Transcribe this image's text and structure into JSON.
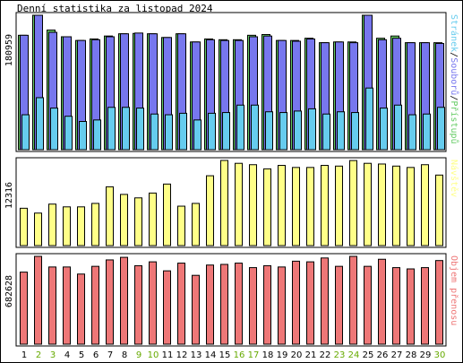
{
  "chart_data": {
    "type": "bar",
    "title": "Denní statistika za listopad 2024",
    "categories": [
      "1",
      "2",
      "3",
      "4",
      "5",
      "6",
      "7",
      "8",
      "9",
      "10",
      "11",
      "12",
      "13",
      "14",
      "15",
      "16",
      "17",
      "18",
      "19",
      "20",
      "21",
      "22",
      "23",
      "24",
      "25",
      "26",
      "27",
      "28",
      "29",
      "30"
    ],
    "weekend_days": [
      "2",
      "3",
      "9",
      "10",
      "16",
      "17",
      "23",
      "24",
      "30"
    ],
    "colors": {
      "hits": "#66cc66",
      "files": "#7777ee",
      "pages": "#66ccee",
      "visits": "#ffff88",
      "kbytes": "#ee7777",
      "weekend_label": "#66aa00",
      "axis_label_text": "#000000"
    },
    "panels": [
      {
        "id": "hits-files-pages",
        "max_label": "180959",
        "ymax": 180959,
        "legend_parts": [
          {
            "text": "Stránek",
            "color": "#66ccee"
          },
          {
            "text": "/",
            "color": "#000000"
          },
          {
            "text": "Souborů",
            "color": "#7777ee"
          },
          {
            "text": "/",
            "color": "#000000"
          },
          {
            "text": "Přístupů",
            "color": "#66cc66"
          }
        ],
        "series": [
          {
            "name": "Přístupů",
            "values": [
              154000,
              180959,
              161000,
              152000,
              147000,
              149000,
              153000,
              156000,
              156500,
              156000,
              151000,
              156000,
              145000,
              149000,
              148000,
              148000,
              154000,
              155000,
              147000,
              147000,
              150000,
              144000,
              145000,
              145000,
              180959,
              150000,
              153000,
              144000,
              144000,
              144000
            ]
          },
          {
            "name": "Souborů",
            "values": [
              154000,
              180959,
              158000,
              152000,
              147000,
              148000,
              152000,
              156000,
              157000,
              156000,
              151000,
              156000,
              145000,
              148000,
              147000,
              147000,
              152000,
              153000,
              147000,
              146000,
              149000,
              144000,
              145000,
              144000,
              180959,
              148000,
              150000,
              144000,
              144000,
              143000
            ]
          },
          {
            "name": "Stránek",
            "values": [
              47000,
              70000,
              56000,
              45000,
              38000,
              40000,
              57000,
              57000,
              56000,
              48000,
              47000,
              49000,
              40000,
              49000,
              50000,
              60000,
              60000,
              51000,
              50000,
              52000,
              55000,
              48000,
              51000,
              50000,
              83000,
              56000,
              60000,
              47000,
              48000,
              57000
            ]
          }
        ]
      },
      {
        "id": "visits",
        "max_label": "12316",
        "ymax": 12316,
        "legend_parts": [
          {
            "text": "Návštěv",
            "color": "#ffff88"
          }
        ],
        "series": [
          {
            "name": "Návštěv",
            "values": [
              5400,
              4700,
              6000,
              5600,
              5600,
              6100,
              8500,
              7400,
              6900,
              7600,
              8900,
              5700,
              6100,
              10100,
              12316,
              11900,
              11700,
              11100,
              11600,
              11300,
              11300,
              11600,
              11500,
              12300,
              11900,
              11800,
              11500,
              11300,
              11700,
              10200
            ]
          }
        ]
      },
      {
        "id": "kbytes",
        "max_label": "682628",
        "ymax": 682628,
        "legend_parts": [
          {
            "text": "Objem přenosu",
            "color": "#ee7777"
          }
        ],
        "series": [
          {
            "name": "Objem přenosu",
            "values": [
              560000,
              682628,
              600000,
              600000,
              545000,
              605000,
              655000,
              675000,
              610000,
              640000,
              570000,
              630000,
              535000,
              615000,
              620000,
              630000,
              595000,
              610000,
              600000,
              645000,
              640000,
              670000,
              605000,
              682628,
              605000,
              660000,
              595000,
              585000,
              595000,
              650000
            ]
          }
        ]
      }
    ],
    "grid": false,
    "legend_position": "right-vertical"
  }
}
